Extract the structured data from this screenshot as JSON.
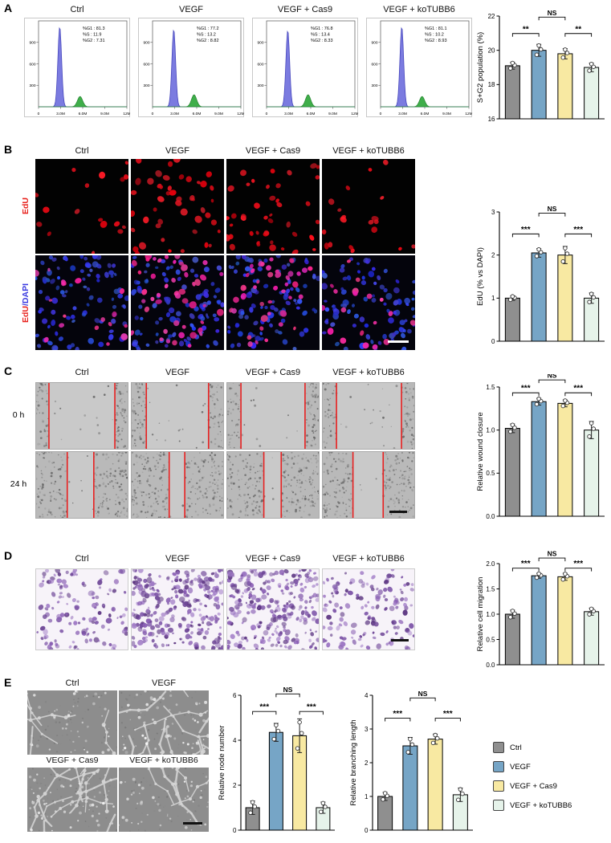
{
  "conditions": [
    "Ctrl",
    "VEGF",
    "VEGF + Cas9",
    "VEGF + koTUBB6"
  ],
  "colors": {
    "ctrl": "#8f8f8f",
    "vegf": "#76a5c6",
    "cas9": "#f8e9a2",
    "kotubb6": "#e6f3ea",
    "edu_red": "#e8241f",
    "dapi_blue": "#3a3ae0",
    "wound_line_red": "#e82020"
  },
  "panelA": {
    "label": "A",
    "flow_axis": {
      "x": [
        "0",
        "3.0M",
        "6.0M",
        "9.0M",
        "12M"
      ],
      "y": [
        "300",
        "600",
        "900"
      ]
    },
    "flow": [
      {
        "seed": 101,
        "g1h": 0.93,
        "g2h": 0.12,
        "stats": [
          "%G1 : 81.3",
          "%S : 11.9",
          "%G2 : 7.31"
        ]
      },
      {
        "seed": 102,
        "g1h": 0.9,
        "g2h": 0.14,
        "stats": [
          "%G1 : 77.2",
          "%S : 13.2",
          "%G2 : 8.82"
        ]
      },
      {
        "seed": 103,
        "g1h": 0.89,
        "g2h": 0.14,
        "stats": [
          "%G1 : 76.8",
          "%S : 13.4",
          "%G2 : 8.33"
        ]
      },
      {
        "seed": 104,
        "g1h": 0.93,
        "g2h": 0.12,
        "stats": [
          "%G1 : 81.1",
          "%S : 10.2",
          "%G2 : 8.93"
        ]
      }
    ]
  },
  "panelB": {
    "label": "B",
    "row_labels": {
      "edu": "EdU",
      "merge_edu": "EdU",
      "merge_dapi": "/DAPI"
    },
    "edu": [
      {
        "seed": 11,
        "count": 17
      },
      {
        "seed": 12,
        "count": 46
      },
      {
        "seed": 13,
        "count": 42
      },
      {
        "seed": 14,
        "count": 19
      }
    ],
    "merge": [
      {
        "seed": 21,
        "blue": 90,
        "red": 17
      },
      {
        "seed": 22,
        "blue": 96,
        "red": 46
      },
      {
        "seed": 23,
        "blue": 92,
        "red": 42
      },
      {
        "seed": 24,
        "blue": 88,
        "red": 19
      }
    ]
  },
  "panelC": {
    "label": "C",
    "row_labels": [
      "0 h",
      "24 h"
    ],
    "rows": [
      [
        {
          "seed": 31,
          "l": 0.14,
          "r": 0.86
        },
        {
          "seed": 32,
          "l": 0.16,
          "r": 0.84
        },
        {
          "seed": 33,
          "l": 0.15,
          "r": 0.85
        },
        {
          "seed": 34,
          "l": 0.15,
          "r": 0.86
        }
      ],
      [
        {
          "seed": 35,
          "l": 0.34,
          "r": 0.63
        },
        {
          "seed": 36,
          "l": 0.41,
          "r": 0.58
        },
        {
          "seed": 37,
          "l": 0.4,
          "r": 0.59
        },
        {
          "seed": 38,
          "l": 0.33,
          "r": 0.66
        }
      ]
    ]
  },
  "panelD": {
    "label": "D",
    "imgs": [
      {
        "seed": 41,
        "count": 130
      },
      {
        "seed": 42,
        "count": 275
      },
      {
        "seed": 43,
        "count": 260
      },
      {
        "seed": 44,
        "count": 140
      }
    ]
  },
  "panelE": {
    "label": "E",
    "imgs": [
      {
        "seed": 51,
        "branches": 5,
        "dots": 45
      },
      {
        "seed": 52,
        "branches": 14,
        "dots": 60
      },
      {
        "seed": 53,
        "branches": 13,
        "dots": 60
      },
      {
        "seed": 54,
        "branches": 5,
        "dots": 50
      }
    ]
  },
  "legend": {
    "items": [
      {
        "label": "Ctrl",
        "color": "#8f8f8f"
      },
      {
        "label": "VEGF",
        "color": "#76a5c6"
      },
      {
        "label": "VEGF + Cas9",
        "color": "#f8e9a2"
      },
      {
        "label": "VEGF + koTUBB6",
        "color": "#e6f3ea"
      }
    ]
  },
  "chart_data": [
    {
      "id": "A",
      "type": "bar",
      "categories": [
        "Ctrl",
        "VEGF",
        "VEGF + Cas9",
        "VEGF + koTUBB6"
      ],
      "values": [
        19.1,
        20.0,
        19.8,
        19.0
      ],
      "errors": [
        0.2,
        0.35,
        0.3,
        0.25
      ],
      "title": "",
      "xlabel": "",
      "ylabel": "S+G2 population (%)",
      "ylim": [
        16,
        22
      ],
      "yticks": [
        16,
        18,
        20,
        22
      ],
      "ytick_labels": [
        "16",
        "18",
        "20",
        "22"
      ],
      "grid": false,
      "colors": [
        "#8f8f8f",
        "#76a5c6",
        "#f8e9a2",
        "#e6f3ea"
      ],
      "sig": [
        {
          "from": 0,
          "to": 1,
          "label": "**",
          "y": 0.17
        },
        {
          "from": 2,
          "to": 3,
          "label": "**",
          "y": 0.17
        },
        {
          "from": 1,
          "to": 2,
          "label": "NS",
          "y": 0.01
        }
      ]
    },
    {
      "id": "B",
      "type": "bar",
      "categories": [
        "Ctrl",
        "VEGF",
        "VEGF + Cas9",
        "VEGF + koTUBB6"
      ],
      "values": [
        1.0,
        2.05,
        2.0,
        1.0
      ],
      "errors": [
        0.05,
        0.1,
        0.2,
        0.12
      ],
      "title": "",
      "xlabel": "",
      "ylabel": "EdU (% vs DAPI)",
      "ylim": [
        0,
        3
      ],
      "yticks": [
        0,
        1,
        2,
        3
      ],
      "ytick_labels": [
        "0",
        "1",
        "2",
        "3"
      ],
      "grid": false,
      "colors": [
        "#8f8f8f",
        "#76a5c6",
        "#f8e9a2",
        "#e6f3ea"
      ],
      "sig": [
        {
          "from": 0,
          "to": 1,
          "label": "***",
          "y": 0.17
        },
        {
          "from": 2,
          "to": 3,
          "label": "***",
          "y": 0.17
        },
        {
          "from": 1,
          "to": 2,
          "label": "NS",
          "y": 0.01
        }
      ]
    },
    {
      "id": "C",
      "type": "bar",
      "categories": [
        "Ctrl",
        "VEGF",
        "VEGF + Cas9",
        "VEGF + koTUBB6"
      ],
      "values": [
        1.02,
        1.33,
        1.31,
        1.0
      ],
      "errors": [
        0.05,
        0.04,
        0.04,
        0.1
      ],
      "title": "",
      "xlabel": "",
      "ylabel": "Relative wound closure",
      "ylim": [
        0,
        1.5
      ],
      "yticks": [
        0,
        0.5,
        1.0,
        1.5
      ],
      "ytick_labels": [
        "0.0",
        "0.5",
        "1.0",
        "1.5"
      ],
      "grid": false,
      "colors": [
        "#8f8f8f",
        "#76a5c6",
        "#f8e9a2",
        "#e6f3ea"
      ],
      "sig": [
        {
          "from": 0,
          "to": 1,
          "label": "***",
          "y": 0.045
        },
        {
          "from": 2,
          "to": 3,
          "label": "***",
          "y": 0.045
        },
        {
          "from": 1,
          "to": 2,
          "label": "NS",
          "y": -0.055
        }
      ]
    },
    {
      "id": "D",
      "type": "bar",
      "categories": [
        "Ctrl",
        "VEGF",
        "VEGF + Cas9",
        "VEGF + koTUBB6"
      ],
      "values": [
        1.0,
        1.76,
        1.74,
        1.05
      ],
      "errors": [
        0.08,
        0.05,
        0.07,
        0.07
      ],
      "title": "",
      "xlabel": "",
      "ylabel": "Relative cell migration",
      "ylim": [
        0,
        2.0
      ],
      "yticks": [
        0,
        0.5,
        1.0,
        1.5,
        2.0
      ],
      "ytick_labels": [
        "0.0",
        "0.5",
        "1.0",
        "1.5",
        "2.0"
      ],
      "grid": false,
      "colors": [
        "#8f8f8f",
        "#76a5c6",
        "#f8e9a2",
        "#e6f3ea"
      ],
      "sig": [
        {
          "from": 0,
          "to": 1,
          "label": "***",
          "y": 0.045
        },
        {
          "from": 2,
          "to": 3,
          "label": "***",
          "y": 0.045
        },
        {
          "from": 1,
          "to": 2,
          "label": "NS",
          "y": -0.055
        }
      ]
    },
    {
      "id": "E1",
      "type": "bar",
      "categories": [
        "Ctrl",
        "VEGF",
        "VEGF + Cas9",
        "VEGF + koTUBB6"
      ],
      "values": [
        1.0,
        4.35,
        4.2,
        1.0
      ],
      "errors": [
        0.3,
        0.4,
        0.75,
        0.25
      ],
      "title": "",
      "xlabel": "",
      "ylabel": "Relative node number",
      "ylim": [
        0,
        6
      ],
      "yticks": [
        0,
        2,
        4,
        6
      ],
      "ytick_labels": [
        "0",
        "2",
        "4",
        "6"
      ],
      "grid": false,
      "colors": [
        "#8f8f8f",
        "#76a5c6",
        "#f8e9a2",
        "#e6f3ea"
      ],
      "sig": [
        {
          "from": 0,
          "to": 1,
          "label": "***",
          "y": 0.12
        },
        {
          "from": 2,
          "to": 3,
          "label": "***",
          "y": 0.12
        },
        {
          "from": 1,
          "to": 2,
          "label": "NS",
          "y": -0.01
        }
      ]
    },
    {
      "id": "E2",
      "type": "bar",
      "categories": [
        "Ctrl",
        "VEGF",
        "VEGF + Cas9",
        "VEGF + koTUBB6"
      ],
      "values": [
        1.0,
        2.5,
        2.7,
        1.05
      ],
      "errors": [
        0.12,
        0.25,
        0.15,
        0.2
      ],
      "title": "",
      "xlabel": "",
      "ylabel": "Relative branching length",
      "ylim": [
        0,
        4
      ],
      "yticks": [
        0,
        1,
        2,
        3,
        4
      ],
      "ytick_labels": [
        "0",
        "1",
        "2",
        "3",
        "4"
      ],
      "grid": false,
      "colors": [
        "#8f8f8f",
        "#76a5c6",
        "#f8e9a2",
        "#e6f3ea"
      ],
      "sig": [
        {
          "from": 0,
          "to": 1,
          "label": "***",
          "y": 0.17
        },
        {
          "from": 2,
          "to": 3,
          "label": "***",
          "y": 0.17
        },
        {
          "from": 1,
          "to": 2,
          "label": "NS",
          "y": 0.02
        }
      ]
    }
  ]
}
